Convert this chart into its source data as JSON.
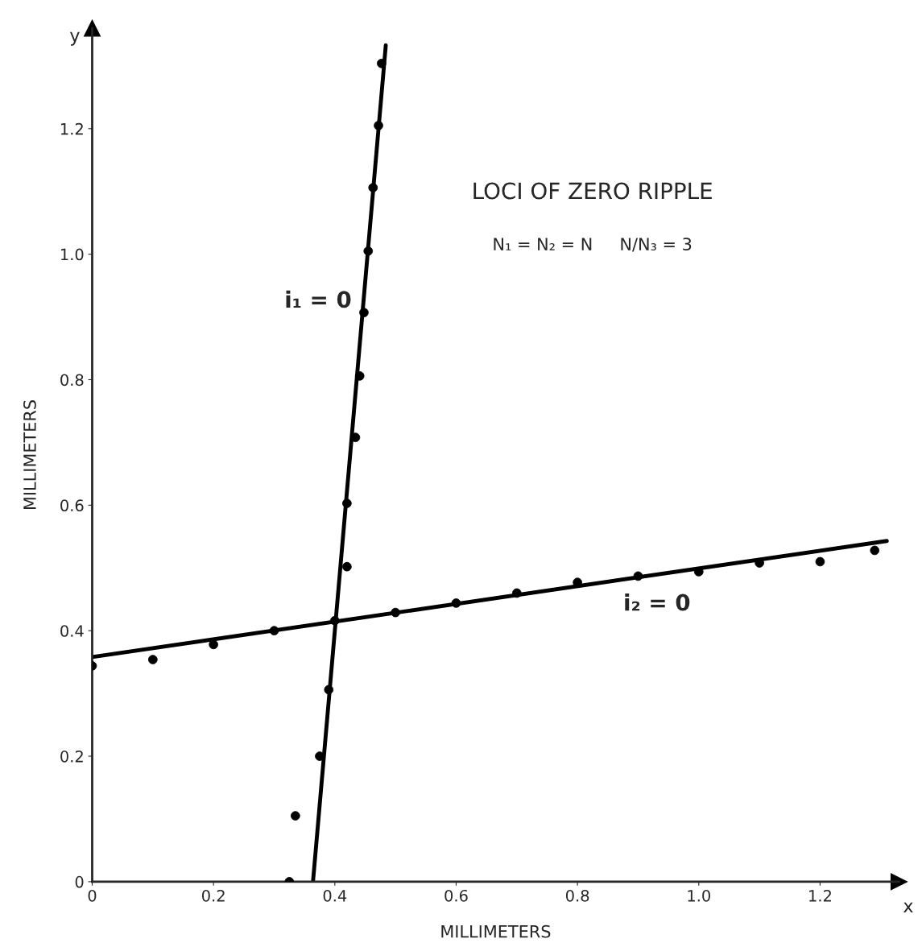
{
  "chart_data": {
    "type": "scatter",
    "title": "LOCI OF ZERO RIPPLE",
    "subtitle": "N₁ = N₂ = N     N/N₃ = 3",
    "xlabel": "MILLIMETERS",
    "ylabel": "MILLIMETERS",
    "annotations": [
      "i₁ = 0",
      "i₂ = 0",
      "x",
      "y"
    ],
    "series": [
      {
        "color": "#000000",
        "marker": "circle",
        "x": [
          0,
          0.1,
          0.2,
          0.3,
          0.4,
          0.5,
          0.6,
          0.7,
          0.8,
          0.9,
          1.0,
          1.1,
          1.2,
          1.29
        ],
        "values": [
          0.344,
          0.354,
          0.378,
          0.4,
          0.416,
          0.429,
          0.444,
          0.46,
          0.477,
          0.487,
          0.494,
          0.508,
          0.51,
          0.528
        ]
      },
      {
        "color": "#000000",
        "marker": "circle",
        "x": [
          0.325,
          0.335,
          0.375,
          0.39,
          0.42,
          0.42,
          0.434,
          0.441,
          0.448,
          0.455,
          0.463,
          0.472,
          0.477
        ],
        "values": [
          0.0,
          0.105,
          0.2,
          0.306,
          0.502,
          0.603,
          0.708,
          0.806,
          0.907,
          1.005,
          1.106,
          1.205,
          1.304
        ]
      },
      {
        "type": "line",
        "color": "#000000",
        "x": [
          0,
          1.31
        ],
        "values": [
          0.358,
          0.543
        ]
      },
      {
        "type": "line",
        "color": "#000000",
        "x": [
          0.364,
          0.484
        ],
        "values": [
          0,
          1.333
        ]
      }
    ],
    "xlim": [
      0,
      1.33
    ],
    "ylim": [
      0,
      1.36
    ],
    "xticks": [
      {
        "value": 0,
        "label": "0"
      },
      {
        "value": 0.2,
        "label": "0.2"
      },
      {
        "value": 0.4,
        "label": "0.4"
      },
      {
        "value": 0.6,
        "label": "0.6"
      },
      {
        "value": 0.8,
        "label": "0.8"
      },
      {
        "value": 1.0,
        "label": "1.0"
      },
      {
        "value": 1.2,
        "label": "1.2"
      }
    ],
    "yticks": [
      {
        "value": 0,
        "label": "0"
      },
      {
        "value": 0.2,
        "label": "0.2"
      },
      {
        "value": 0.4,
        "label": "0.4"
      },
      {
        "value": 0.6,
        "label": "0.6"
      },
      {
        "value": 0.8,
        "label": "0.8"
      },
      {
        "value": 1.0,
        "label": "1.0"
      },
      {
        "value": 1.2,
        "label": "1.2"
      }
    ],
    "grid": false,
    "legend": false
  }
}
